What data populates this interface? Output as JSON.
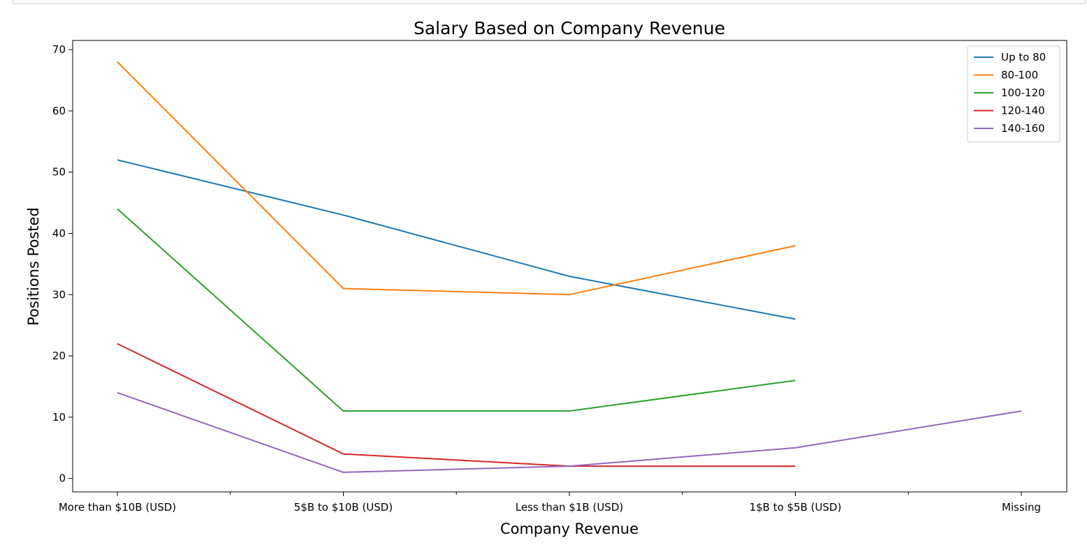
{
  "chart_data": {
    "type": "line",
    "title": "Salary Based on Company Revenue",
    "xlabel": "Company Revenue",
    "ylabel": "Positions Posted",
    "categories": [
      "More than $10B (USD)",
      "5$B to $10B (USD)",
      "Less than $1B (USD)",
      "1$B to $5B (USD)",
      "Missing"
    ],
    "ylim": [
      -2.2,
      71.5
    ],
    "yticks": [
      0,
      10,
      20,
      30,
      40,
      50,
      60,
      70
    ],
    "grid": false,
    "legend_position": "top-right",
    "series": [
      {
        "name": "Up to 80",
        "color": "#1f77b4",
        "values": [
          52,
          43,
          33,
          26,
          null
        ]
      },
      {
        "name": "80-100",
        "color": "#ff7f0e",
        "values": [
          68,
          31,
          30,
          38,
          null
        ]
      },
      {
        "name": "100-120",
        "color": "#2ca02c",
        "values": [
          44,
          11,
          11,
          16,
          null
        ]
      },
      {
        "name": "120-140",
        "color": "#d62728",
        "values": [
          22,
          4,
          2,
          2,
          null
        ]
      },
      {
        "name": "140-160",
        "color": "#9467bd",
        "values": [
          14,
          1,
          2,
          5,
          11
        ]
      }
    ]
  }
}
